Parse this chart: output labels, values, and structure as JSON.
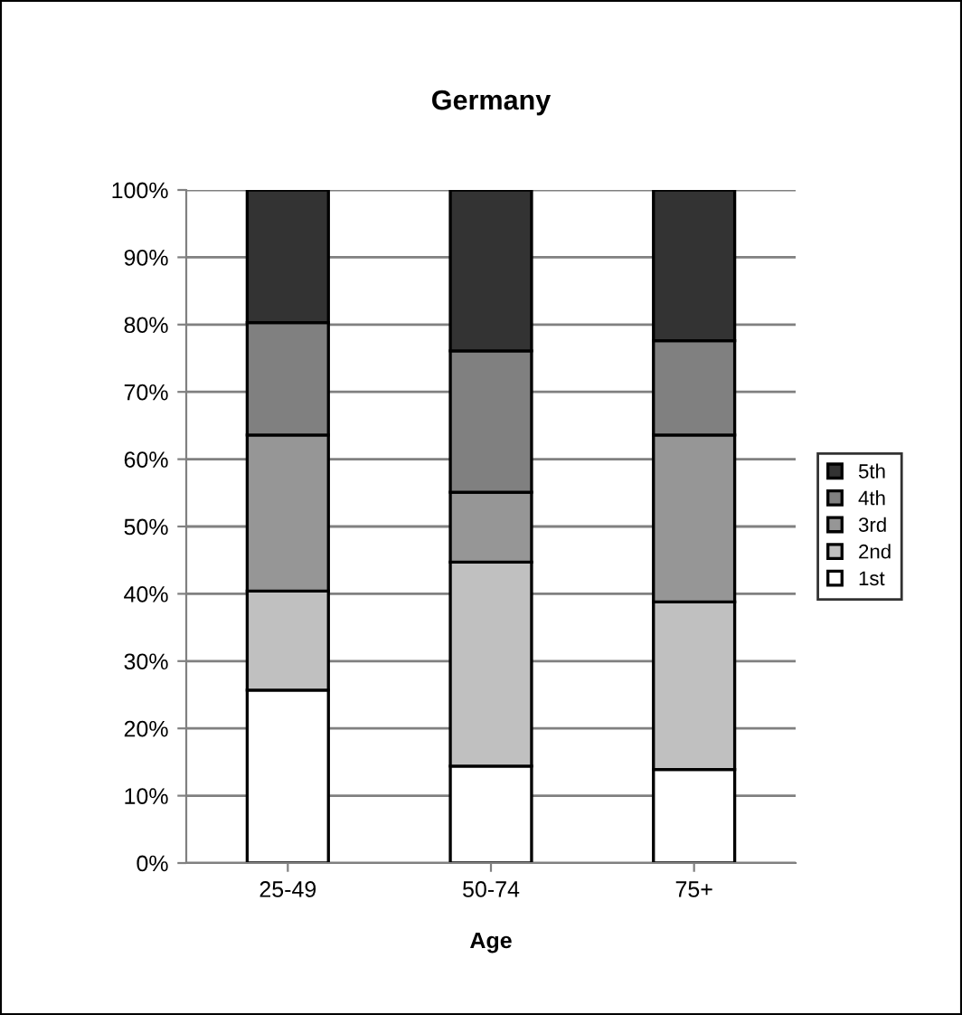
{
  "chart_data": {
    "type": "bar",
    "title": "Germany",
    "xlabel": "Age",
    "categories": [
      "25-49",
      "50-74",
      "75+"
    ],
    "stacked": true,
    "series": [
      {
        "name": "1st",
        "color": "#ffffff",
        "values": [
          25.7,
          14.4,
          13.9
        ]
      },
      {
        "name": "2nd",
        "color": "#c0c0c0",
        "values": [
          14.7,
          30.3,
          24.9
        ]
      },
      {
        "name": "3rd",
        "color": "#969696",
        "values": [
          23.2,
          10.4,
          24.8
        ]
      },
      {
        "name": "4th",
        "color": "#808080",
        "values": [
          16.7,
          21.0,
          14.0
        ]
      },
      {
        "name": "5th",
        "color": "#333333",
        "values": [
          19.7,
          23.9,
          22.4
        ]
      }
    ],
    "ylim": [
      0,
      100
    ],
    "yticks": [
      {
        "value": 0,
        "label": "0%"
      },
      {
        "value": 10,
        "label": "10%"
      },
      {
        "value": 20,
        "label": "20%"
      },
      {
        "value": 30,
        "label": "30%"
      },
      {
        "value": 40,
        "label": "40%"
      },
      {
        "value": 50,
        "label": "50%"
      },
      {
        "value": 60,
        "label": "60%"
      },
      {
        "value": 70,
        "label": "70%"
      },
      {
        "value": 80,
        "label": "80%"
      },
      {
        "value": 90,
        "label": "90%"
      },
      {
        "value": 100,
        "label": "100%"
      }
    ],
    "grid": "y",
    "legend": "right"
  }
}
